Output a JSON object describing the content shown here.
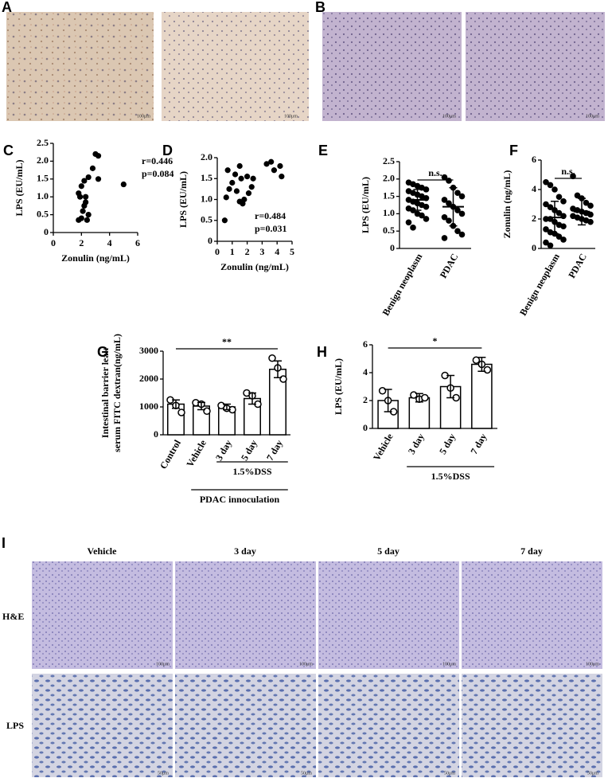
{
  "figure_panels": [
    {
      "panel": "A",
      "scale_labels": [
        "100μm",
        "100μm"
      ]
    },
    {
      "panel": "B",
      "scale_labels": [
        "100μm",
        "100μm"
      ]
    },
    {
      "panel": "I",
      "columns": [
        "Vehicle",
        "3 day",
        "5 day",
        "7 day"
      ],
      "rows": [
        "H&E",
        "LPS"
      ],
      "scale_labels": [
        "100μm",
        "100μm",
        "100μm",
        "100μm",
        "50μm",
        "50μm",
        "50μm",
        "50μm"
      ]
    }
  ],
  "chart_data": [
    {
      "type": "scatter",
      "panel": "C",
      "xlabel": "Zonulin (ng/mL)",
      "ylabel": "LPS (EU/mL)",
      "annotations": [
        "r=0.446",
        "p=0.084"
      ],
      "x": [
        1.8,
        2.0,
        2.1,
        2.2,
        1.9,
        1.8,
        2.0,
        2.2,
        2.3,
        2.5,
        2.3,
        2.5,
        2.8,
        3.0,
        3.2,
        3.2,
        5.0,
        2.4
      ],
      "values": [
        0.35,
        0.4,
        0.6,
        0.75,
        1.0,
        1.1,
        1.3,
        1.45,
        1.0,
        0.5,
        0.85,
        1.55,
        1.8,
        2.2,
        2.15,
        1.5,
        1.35,
        0.35
      ],
      "xlim": [
        0,
        6
      ],
      "xticks": [
        0,
        2,
        4,
        6
      ],
      "ylim": [
        0,
        2.5
      ],
      "yticks": [
        0,
        0.5,
        {
          "value": 1,
          "label": "1.0"
        },
        1.5,
        {
          "value": 2,
          "label": "2.0"
        },
        2.5
      ]
    },
    {
      "type": "scatter",
      "panel": "D",
      "xlabel": "Zonulin (ng/mL)",
      "ylabel": "LPS (EU/mL)",
      "annotations": [
        "r=0.484",
        "p=0.031"
      ],
      "x": [
        0.5,
        0.6,
        0.7,
        0.8,
        1.0,
        1.2,
        1.5,
        1.6,
        1.3,
        1.5,
        1.7,
        1.8,
        2.0,
        2.1,
        2.3,
        2.4,
        3.3,
        3.6,
        3.8,
        4.2,
        4.3
      ],
      "values": [
        0.5,
        1.05,
        1.7,
        1.25,
        1.4,
        1.6,
        1.8,
        1.5,
        1.2,
        0.95,
        0.9,
        1.0,
        1.55,
        1.15,
        1.3,
        1.5,
        1.85,
        1.9,
        1.7,
        1.8,
        1.55
      ],
      "xlim": [
        0,
        5
      ],
      "xticks": [
        0,
        1,
        2,
        3,
        4,
        5
      ],
      "ylim": [
        0,
        2
      ],
      "yticks": [
        0,
        0.5,
        {
          "value": 1,
          "label": "1.0"
        },
        1.5,
        {
          "value": 2,
          "label": "2.0"
        }
      ]
    },
    {
      "type": "dot",
      "panel": "E",
      "ylabel": "LPS (EU/mL)",
      "significance": "n.s.",
      "categories": [
        "Benign neoplasm",
        "PDAC"
      ],
      "means": [
        1.4,
        1.2
      ],
      "sd": [
        0.3,
        0.55
      ],
      "points": [
        [
          1.9,
          1.85,
          1.8,
          1.75,
          1.7,
          1.65,
          1.6,
          1.55,
          1.5,
          1.45,
          1.4,
          1.35,
          1.3,
          1.25,
          1.2,
          1.15,
          1.1,
          1.0,
          0.95,
          0.85,
          0.75,
          0.6
        ],
        [
          2.05,
          1.95,
          1.75,
          1.6,
          1.5,
          1.4,
          1.3,
          1.2,
          1.1,
          1.0,
          0.9,
          0.8,
          0.65,
          0.5,
          0.4,
          0.3
        ]
      ],
      "ylim": [
        0,
        2.5
      ],
      "yticks": [
        0,
        0.5,
        {
          "value": 1,
          "label": "1.0"
        },
        1.5,
        {
          "value": 2,
          "label": "2.0"
        },
        2.5
      ]
    },
    {
      "type": "dot",
      "panel": "F",
      "ylabel": "Zonulin (ng/mL)",
      "significance": "n.s.",
      "categories": [
        "Benign neoplasm",
        "PDAC"
      ],
      "means": [
        2.1,
        2.5
      ],
      "sd": [
        1.1,
        0.9
      ],
      "points": [
        [
          4.5,
          4.3,
          4.0,
          3.5,
          3.2,
          3.0,
          2.8,
          2.6,
          2.4,
          2.2,
          2.0,
          2.0,
          1.8,
          1.6,
          1.5,
          1.3,
          1.1,
          1.0,
          0.8,
          0.6,
          0.4,
          0.2
        ],
        [
          4.9,
          3.6,
          3.4,
          3.1,
          2.9,
          2.7,
          2.6,
          2.5,
          2.4,
          2.3,
          2.2,
          2.1,
          2.0,
          1.9,
          1.8
        ]
      ],
      "ylim": [
        0,
        6
      ],
      "yticks": [
        0,
        2,
        4,
        6
      ]
    },
    {
      "type": "bar",
      "panel": "G",
      "ylabel": [
        "Intestinal barrier leak",
        "serum FITC dextran(ng/mL)"
      ],
      "significance": "**",
      "categories": [
        "Control",
        "Vehicle",
        "3 day",
        "5 day",
        "7 day"
      ],
      "means": [
        1100,
        1030,
        1000,
        1300,
        2350
      ],
      "sd": [
        150,
        130,
        100,
        200,
        300
      ],
      "points": [
        [
          1250,
          1050,
          800
        ],
        [
          1150,
          1100,
          850
        ],
        [
          1050,
          950,
          900
        ],
        [
          1500,
          1400,
          1100
        ],
        [
          2750,
          2400,
          2000
        ]
      ],
      "groups": [
        "1.5%DSS",
        "PDAC innoculation"
      ],
      "ylim": [
        0,
        3000
      ],
      "yticks": [
        0,
        1000,
        2000,
        3000
      ]
    },
    {
      "type": "bar",
      "panel": "H",
      "ylabel": "LPS (EU/mL)",
      "significance": "*",
      "categories": [
        "Vehicle",
        "3 day",
        "5 day",
        "7 day"
      ],
      "means": [
        2.0,
        2.2,
        3.0,
        4.6
      ],
      "sd": [
        0.8,
        0.3,
        0.8,
        0.5
      ],
      "points": [
        [
          2.7,
          2.0,
          1.2
        ],
        [
          2.4,
          2.1,
          2.2
        ],
        [
          3.8,
          2.9,
          2.2
        ],
        [
          4.9,
          4.6,
          4.2
        ]
      ],
      "groups": [
        "1.5%DSS"
      ],
      "ylim": [
        0,
        6
      ],
      "yticks": [
        0,
        2,
        4,
        6
      ]
    }
  ]
}
